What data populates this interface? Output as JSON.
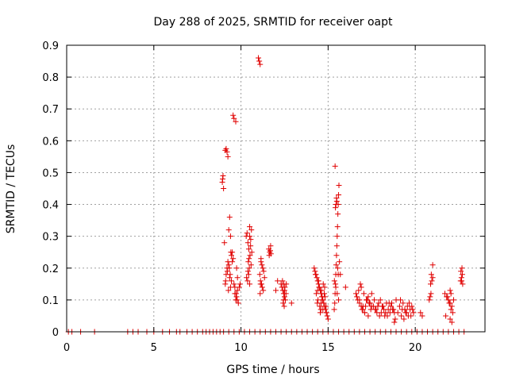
{
  "chart_data": {
    "type": "scatter",
    "title": "Day 288 of 2025, SRMTID for receiver oapt",
    "xlabel": "GPS time / hours",
    "ylabel": "SRMTID / TECUs",
    "xlim": [
      0,
      24
    ],
    "ylim": [
      0,
      0.9
    ],
    "xticks": [
      0,
      5,
      10,
      15,
      20
    ],
    "xtick_labels": [
      "0",
      "5",
      "10",
      "15",
      "20"
    ],
    "yticks": [
      0,
      0.1,
      0.2,
      0.3,
      0.4,
      0.5,
      0.6,
      0.7,
      0.8,
      0.9
    ],
    "ytick_labels": [
      "0",
      "0.1",
      "0.2",
      "0.3",
      "0.4",
      "0.5",
      "0.6",
      "0.7",
      "0.8",
      "0.9"
    ],
    "grid": true,
    "marker": "plus",
    "color": "#e00000",
    "series": [
      {
        "name": "SRMTID",
        "x": [
          0.1,
          0.3,
          0.8,
          1.6,
          3.5,
          3.8,
          4.1,
          4.6,
          5.0,
          5.5,
          5.9,
          6.3,
          6.5,
          6.9,
          7.2,
          7.5,
          7.8,
          8.0,
          8.2,
          8.4,
          8.6,
          8.8,
          9.0,
          9.3,
          9.6,
          9.9,
          10.2,
          10.5,
          10.8,
          11.1,
          11.4,
          11.7,
          12.0,
          12.3,
          12.6,
          12.9,
          13.2,
          13.5,
          13.8,
          14.1,
          14.4,
          14.7,
          15.0,
          15.3,
          15.6,
          15.9,
          16.2,
          16.5,
          16.8,
          17.1,
          17.4,
          17.7,
          18.0,
          18.3,
          18.6,
          18.9,
          19.2,
          19.5,
          19.8,
          20.1,
          20.4,
          20.7,
          21.0,
          21.3,
          21.6,
          21.9,
          22.2,
          22.5,
          22.8,
          8.95,
          8.97,
          8.93,
          9.0,
          9.1,
          9.15,
          9.2,
          9.25,
          9.05,
          9.35,
          9.4,
          9.5,
          9.3,
          9.45,
          9.6,
          9.55,
          9.7,
          9.75,
          9.8,
          9.65,
          9.1,
          9.15,
          9.2,
          9.12,
          9.25,
          9.3,
          9.22,
          9.35,
          9.4,
          9.45,
          9.28,
          9.33,
          9.5,
          9.38,
          9.42,
          9.55,
          9.6,
          9.65,
          9.7,
          9.75,
          9.8,
          9.85,
          9.9,
          9.72,
          9.78,
          9.95,
          10.3,
          10.35,
          10.4,
          10.45,
          10.5,
          10.55,
          10.42,
          10.48,
          10.52,
          10.6,
          10.38,
          10.44,
          10.5,
          10.56,
          10.62,
          10.46,
          10.58,
          10.32,
          10.4,
          10.5,
          11.0,
          11.05,
          11.1,
          11.15,
          11.2,
          11.25,
          11.3,
          11.12,
          11.18,
          11.22,
          11.28,
          11.35,
          11.08,
          11.1,
          11.15,
          11.12,
          11.6,
          11.65,
          11.7,
          11.62,
          11.68,
          11.72,
          12.0,
          12.1,
          12.3,
          12.35,
          12.4,
          12.45,
          12.5,
          12.55,
          12.6,
          12.42,
          12.48,
          12.38,
          12.52,
          12.58,
          12.44,
          12.5,
          12.46,
          12.9,
          14.2,
          14.25,
          14.3,
          14.35,
          14.4,
          14.45,
          14.5,
          14.55,
          14.6,
          14.65,
          14.7,
          14.75,
          14.8,
          14.85,
          14.9,
          14.95,
          15.0,
          14.32,
          14.42,
          14.52,
          14.62,
          14.72,
          14.82,
          14.38,
          14.48,
          14.58,
          14.68,
          14.78,
          14.88,
          14.45,
          14.55,
          14.65,
          14.28,
          14.4,
          14.6,
          14.7,
          14.8,
          14.9,
          15.35,
          15.38,
          15.4,
          15.42,
          15.44,
          15.46,
          15.48,
          15.5,
          15.52,
          15.54,
          15.56,
          15.58,
          15.6,
          15.62,
          15.4,
          15.45,
          15.5,
          15.42,
          15.48,
          15.55,
          15.58,
          15.36,
          15.44,
          15.52,
          15.6,
          15.65,
          15.7,
          16.0,
          16.6,
          16.7,
          16.8,
          16.9,
          17.0,
          17.1,
          17.2,
          17.3,
          17.4,
          17.5,
          16.75,
          16.85,
          16.95,
          17.05,
          17.15,
          17.25,
          17.35,
          17.45,
          16.65,
          16.9,
          17.1,
          17.3,
          17.5,
          16.8,
          17.0,
          17.2,
          17.4,
          17.6,
          17.7,
          17.8,
          17.9,
          18.0,
          18.1,
          18.2,
          18.3,
          18.4,
          18.5,
          18.6,
          18.7,
          18.8,
          18.9,
          17.75,
          17.95,
          18.15,
          18.35,
          18.55,
          18.75,
          17.65,
          17.85,
          18.05,
          18.25,
          18.45,
          18.65,
          18.85,
          18.8,
          19.0,
          19.1,
          19.2,
          19.3,
          19.4,
          19.5,
          19.6,
          19.7,
          19.8,
          19.9,
          19.15,
          19.35,
          19.55,
          19.75,
          19.25,
          19.45,
          19.65,
          19.85,
          20.3,
          20.4,
          20.8,
          20.85,
          20.9,
          20.95,
          21.0,
          20.88,
          20.92,
          21.0,
          21.7,
          21.8,
          21.9,
          22.0,
          22.1,
          22.2,
          21.85,
          21.95,
          22.05,
          22.15,
          21.75,
          22.0,
          22.1,
          22.0,
          22.05,
          22.6,
          22.65,
          22.7,
          22.62,
          22.68,
          22.72,
          22.66
        ],
        "y": [
          0,
          0,
          0,
          0,
          0,
          0,
          0,
          0,
          0,
          0,
          0,
          0,
          0,
          0,
          0,
          0,
          0,
          0,
          0,
          0,
          0,
          0,
          0,
          0,
          0,
          0,
          0,
          0,
          0,
          0,
          0,
          0,
          0,
          0,
          0,
          0,
          0,
          0,
          0,
          0,
          0,
          0,
          0,
          0,
          0,
          0,
          0,
          0,
          0,
          0,
          0,
          0,
          0,
          0,
          0,
          0,
          0,
          0,
          0,
          0,
          0,
          0,
          0,
          0,
          0,
          0,
          0,
          0,
          0,
          0.48,
          0.49,
          0.47,
          0.45,
          0.57,
          0.575,
          0.565,
          0.55,
          0.28,
          0.36,
          0.3,
          0.25,
          0.32,
          0.24,
          0.67,
          0.68,
          0.66,
          0.2,
          0.17,
          0.14,
          0.15,
          0.18,
          0.2,
          0.16,
          0.22,
          0.21,
          0.19,
          0.17,
          0.14,
          0.16,
          0.13,
          0.2,
          0.22,
          0.18,
          0.25,
          0.23,
          0.15,
          0.12,
          0.1,
          0.11,
          0.13,
          0.09,
          0.14,
          0.12,
          0.1,
          0.15,
          0.3,
          0.31,
          0.28,
          0.26,
          0.33,
          0.27,
          0.22,
          0.2,
          0.24,
          0.32,
          0.16,
          0.18,
          0.15,
          0.29,
          0.25,
          0.23,
          0.21,
          0.17,
          0.19,
          0.3,
          0.86,
          0.85,
          0.84,
          0.22,
          0.21,
          0.2,
          0.19,
          0.16,
          0.15,
          0.14,
          0.13,
          0.17,
          0.18,
          0.12,
          0.23,
          0.15,
          0.26,
          0.25,
          0.27,
          0.24,
          0.255,
          0.245,
          0.13,
          0.16,
          0.15,
          0.14,
          0.13,
          0.12,
          0.11,
          0.1,
          0.15,
          0.09,
          0.08,
          0.16,
          0.14,
          0.12,
          0.1,
          0.13,
          0.15,
          0.09,
          0.2,
          0.19,
          0.18,
          0.17,
          0.16,
          0.15,
          0.14,
          0.13,
          0.12,
          0.11,
          0.1,
          0.09,
          0.08,
          0.07,
          0.06,
          0.05,
          0.04,
          0.12,
          0.1,
          0.08,
          0.13,
          0.15,
          0.11,
          0.09,
          0.14,
          0.07,
          0.1,
          0.12,
          0.08,
          0.16,
          0.06,
          0.11,
          0.18,
          0.13,
          0.09,
          0.07,
          0.14,
          0.06,
          0.07,
          0.09,
          0.12,
          0.15,
          0.18,
          0.21,
          0.24,
          0.27,
          0.3,
          0.33,
          0.37,
          0.4,
          0.43,
          0.46,
          0.52,
          0.4,
          0.41,
          0.39,
          0.42,
          0.2,
          0.18,
          0.16,
          0.14,
          0.12,
          0.1,
          0.22,
          0.18,
          0.14,
          0.12,
          0.1,
          0.09,
          0.08,
          0.07,
          0.06,
          0.1,
          0.11,
          0.09,
          0.08,
          0.13,
          0.15,
          0.07,
          0.12,
          0.08,
          0.1,
          0.09,
          0.07,
          0.11,
          0.14,
          0.06,
          0.05,
          0.12,
          0.1,
          0.08,
          0.1,
          0.09,
          0.08,
          0.07,
          0.06,
          0.09,
          0.1,
          0.08,
          0.07,
          0.06,
          0.05,
          0.09,
          0.08,
          0.07,
          0.06,
          0.1,
          0.07,
          0.05,
          0.08,
          0.09,
          0.06,
          0.07,
          0.1,
          0.08,
          0.06,
          0.05,
          0.07,
          0.09,
          0.04,
          0.03,
          0.06,
          0.08,
          0.05,
          0.09,
          0.07,
          0.06,
          0.05,
          0.07,
          0.08,
          0.06,
          0.1,
          0.04,
          0.08,
          0.05,
          0.07,
          0.06,
          0.09,
          0.07,
          0.06,
          0.05,
          0.1,
          0.11,
          0.12,
          0.16,
          0.17,
          0.15,
          0.18,
          0.21,
          0.12,
          0.11,
          0.1,
          0.09,
          0.08,
          0.1,
          0.11,
          0.09,
          0.07,
          0.06,
          0.05,
          0.04,
          0.03,
          0.13,
          0.12,
          0.16,
          0.17,
          0.18,
          0.19,
          0.2,
          0.15,
          0.16
        ]
      }
    ]
  }
}
